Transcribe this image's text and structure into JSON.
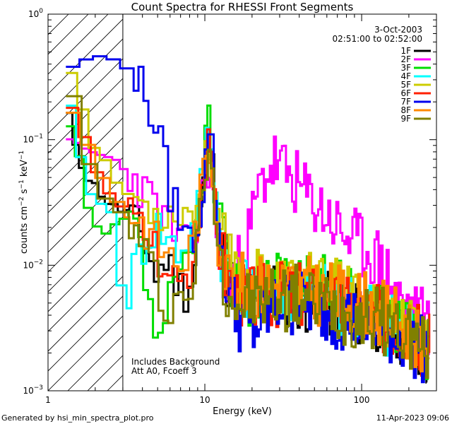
{
  "chart_data": {
    "type": "line",
    "title": "Count Spectra for RHESSI Front Segments",
    "xlabel": "Energy (keV)",
    "ylabel": "counts cm",
    "ylabel_parts": {
      "p1": "counts cm",
      "s1": "−2",
      "p2": " s",
      "s2": "−1",
      "p3": " keV",
      "s3": "−1"
    },
    "xscale": "log",
    "yscale": "log",
    "xlim": [
      1,
      300
    ],
    "ylim": [
      0.001,
      1
    ],
    "x_ticks": [
      {
        "v": 1,
        "label": "1"
      },
      {
        "v": 10,
        "label": "10"
      },
      {
        "v": 100,
        "label": "100"
      }
    ],
    "y_ticks": [
      {
        "v": 1,
        "m": "10",
        "e": "0"
      },
      {
        "v": 0.1,
        "m": "10",
        "e": "−1"
      },
      {
        "v": 0.01,
        "m": "10",
        "e": "−2"
      },
      {
        "v": 0.001,
        "m": "10",
        "e": "−3"
      }
    ],
    "hatched_region_max_energy": 3,
    "annotation_date": "3-Oct-2003",
    "annotation_time": "02:51:00 to 02:52:00",
    "note_line1": "Includes Background",
    "note_line2": "Att A0, Fcoeff 3",
    "footer_left": "Generated by hsi_min_spectra_plot.pro",
    "footer_right": "11-Apr-2023 09:06",
    "legend_position": "top-right",
    "series": [
      {
        "name": "1F",
        "color": "#000000",
        "noise_seed": 11,
        "points": [
          [
            1.3,
            0.2
          ],
          [
            1.4,
            0.13
          ],
          [
            1.6,
            0.07
          ],
          [
            1.8,
            0.05
          ],
          [
            2.1,
            0.04
          ],
          [
            2.5,
            0.03
          ],
          [
            3,
            0.027
          ],
          [
            3.5,
            0.022
          ],
          [
            4,
            0.018
          ],
          [
            4.5,
            0.012
          ],
          [
            5,
            0.007
          ],
          [
            5.5,
            0.012
          ],
          [
            6.5,
            0.008
          ],
          [
            7.5,
            0.006
          ],
          [
            8.5,
            0.009
          ],
          [
            9.5,
            0.03
          ],
          [
            10.5,
            0.09
          ],
          [
            11.5,
            0.05
          ],
          [
            12.5,
            0.018
          ],
          [
            14,
            0.008
          ],
          [
            16,
            0.006
          ],
          [
            20,
            0.005
          ],
          [
            25,
            0.006
          ],
          [
            30,
            0.006
          ],
          [
            40,
            0.0055
          ],
          [
            55,
            0.005
          ],
          [
            70,
            0.0045
          ],
          [
            100,
            0.004
          ],
          [
            150,
            0.0035
          ],
          [
            200,
            0.0028
          ],
          [
            260,
            0.002
          ]
        ]
      },
      {
        "name": "2F",
        "color": "#ff00ff",
        "noise_seed": 23,
        "points": [
          [
            1.3,
            0.095
          ],
          [
            1.5,
            0.09
          ],
          [
            1.8,
            0.08
          ],
          [
            2.2,
            0.075
          ],
          [
            2.6,
            0.07
          ],
          [
            3,
            0.06
          ],
          [
            3.5,
            0.05
          ],
          [
            4,
            0.04
          ],
          [
            5,
            0.03
          ],
          [
            6,
            0.02
          ],
          [
            7,
            0.015
          ],
          [
            8,
            0.014
          ],
          [
            9,
            0.018
          ],
          [
            9.7,
            0.04
          ],
          [
            10.5,
            0.06
          ],
          [
            11.5,
            0.03
          ],
          [
            12.5,
            0.012
          ],
          [
            14,
            0.008
          ],
          [
            16,
            0.009
          ],
          [
            18,
            0.012
          ],
          [
            20,
            0.022
          ],
          [
            22,
            0.038
          ],
          [
            25,
            0.055
          ],
          [
            28,
            0.065
          ],
          [
            32,
            0.055
          ],
          [
            38,
            0.045
          ],
          [
            45,
            0.035
          ],
          [
            52,
            0.03
          ],
          [
            60,
            0.025
          ],
          [
            70,
            0.02
          ],
          [
            85,
            0.016
          ],
          [
            100,
            0.014
          ],
          [
            120,
            0.012
          ],
          [
            150,
            0.008
          ],
          [
            180,
            0.005
          ],
          [
            220,
            0.004
          ],
          [
            270,
            0.0035
          ]
        ]
      },
      {
        "name": "3F",
        "color": "#00dd00",
        "noise_seed": 37,
        "points": [
          [
            1.3,
            0.15
          ],
          [
            1.5,
            0.1
          ],
          [
            1.7,
            0.04
          ],
          [
            1.9,
            0.02
          ],
          [
            2.3,
            0.018
          ],
          [
            2.8,
            0.02
          ],
          [
            3.3,
            0.025
          ],
          [
            4,
            0.012
          ],
          [
            4.5,
            0.004
          ],
          [
            5,
            0.0025
          ],
          [
            6,
            0.005
          ],
          [
            7.5,
            0.009
          ],
          [
            8.5,
            0.012
          ],
          [
            9.5,
            0.04
          ],
          [
            10.5,
            0.19
          ],
          [
            11.2,
            0.05
          ],
          [
            12.5,
            0.02
          ],
          [
            14,
            0.009
          ],
          [
            16,
            0.007
          ],
          [
            20,
            0.006
          ],
          [
            25,
            0.007
          ],
          [
            30,
            0.0065
          ],
          [
            40,
            0.007
          ],
          [
            55,
            0.007
          ],
          [
            70,
            0.006
          ],
          [
            100,
            0.005
          ],
          [
            150,
            0.004
          ],
          [
            200,
            0.003
          ],
          [
            270,
            0.002
          ]
        ]
      },
      {
        "name": "4F",
        "color": "#00ffff",
        "noise_seed": 41,
        "points": [
          [
            1.3,
            0.25
          ],
          [
            1.5,
            0.12
          ],
          [
            1.7,
            0.06
          ],
          [
            1.9,
            0.035
          ],
          [
            2.2,
            0.03
          ],
          [
            2.6,
            0.025
          ],
          [
            2.9,
            0.008
          ],
          [
            3.2,
            0.005
          ],
          [
            3.6,
            0.01
          ],
          [
            4.2,
            0.015
          ],
          [
            5,
            0.02
          ],
          [
            6,
            0.015
          ],
          [
            7,
            0.012
          ],
          [
            8.5,
            0.02
          ],
          [
            9.7,
            0.05
          ],
          [
            10.5,
            0.12
          ],
          [
            11.5,
            0.05
          ],
          [
            12.5,
            0.015
          ],
          [
            14,
            0.008
          ],
          [
            16,
            0.007
          ],
          [
            20,
            0.0065
          ],
          [
            25,
            0.0065
          ],
          [
            30,
            0.006
          ],
          [
            40,
            0.006
          ],
          [
            55,
            0.0055
          ],
          [
            70,
            0.005
          ],
          [
            100,
            0.0045
          ],
          [
            150,
            0.0035
          ],
          [
            200,
            0.003
          ],
          [
            270,
            0.0025
          ]
        ]
      },
      {
        "name": "5F",
        "color": "#cccc00",
        "noise_seed": 53,
        "points": [
          [
            1.3,
            0.5
          ],
          [
            1.5,
            0.3
          ],
          [
            1.7,
            0.15
          ],
          [
            1.9,
            0.1
          ],
          [
            2.2,
            0.07
          ],
          [
            2.6,
            0.05
          ],
          [
            3,
            0.04
          ],
          [
            3.5,
            0.035
          ],
          [
            4.2,
            0.03
          ],
          [
            5,
            0.028
          ],
          [
            6,
            0.025
          ],
          [
            7,
            0.03
          ],
          [
            8,
            0.025
          ],
          [
            9,
            0.03
          ],
          [
            10,
            0.06
          ],
          [
            10.8,
            0.1
          ],
          [
            11.5,
            0.05
          ],
          [
            12.5,
            0.02
          ],
          [
            14,
            0.01
          ],
          [
            16,
            0.008
          ],
          [
            20,
            0.007
          ],
          [
            25,
            0.0075
          ],
          [
            30,
            0.007
          ],
          [
            40,
            0.007
          ],
          [
            55,
            0.0065
          ],
          [
            70,
            0.006
          ],
          [
            100,
            0.005
          ],
          [
            150,
            0.004
          ],
          [
            200,
            0.003
          ],
          [
            270,
            0.0025
          ]
        ]
      },
      {
        "name": "6F",
        "color": "#ff2000",
        "noise_seed": 67,
        "points": [
          [
            1.3,
            0.22
          ],
          [
            1.5,
            0.15
          ],
          [
            1.7,
            0.1
          ],
          [
            1.9,
            0.07
          ],
          [
            2.2,
            0.05
          ],
          [
            2.6,
            0.035
          ],
          [
            3,
            0.03
          ],
          [
            3.5,
            0.025
          ],
          [
            4.2,
            0.018
          ],
          [
            5,
            0.015
          ],
          [
            5.5,
            0.007
          ],
          [
            6.5,
            0.01
          ],
          [
            7.5,
            0.008
          ],
          [
            8.5,
            0.012
          ],
          [
            9.5,
            0.04
          ],
          [
            10.5,
            0.09
          ],
          [
            11.5,
            0.04
          ],
          [
            12.5,
            0.015
          ],
          [
            14,
            0.008
          ],
          [
            16,
            0.006
          ],
          [
            20,
            0.0055
          ],
          [
            25,
            0.006
          ],
          [
            30,
            0.006
          ],
          [
            40,
            0.006
          ],
          [
            55,
            0.0055
          ],
          [
            70,
            0.005
          ],
          [
            100,
            0.0045
          ],
          [
            150,
            0.0035
          ],
          [
            200,
            0.003
          ],
          [
            270,
            0.0022
          ]
        ]
      },
      {
        "name": "7F",
        "color": "#0000ee",
        "noise_seed": 79,
        "points": [
          [
            1.3,
            0.33
          ],
          [
            1.5,
            0.38
          ],
          [
            1.7,
            0.45
          ],
          [
            2,
            0.42
          ],
          [
            2.3,
            0.47
          ],
          [
            2.7,
            0.42
          ],
          [
            3.2,
            0.4
          ],
          [
            3.6,
            0.33
          ],
          [
            4,
            0.25
          ],
          [
            4.5,
            0.18
          ],
          [
            5,
            0.12
          ],
          [
            5.5,
            0.07
          ],
          [
            6,
            0.04
          ],
          [
            6.5,
            0.03
          ],
          [
            7,
            0.025
          ],
          [
            8,
            0.015
          ],
          [
            9,
            0.02
          ],
          [
            10,
            0.05
          ],
          [
            10.7,
            0.15
          ],
          [
            11.5,
            0.05
          ],
          [
            12.5,
            0.015
          ],
          [
            14,
            0.006
          ],
          [
            16,
            0.004
          ],
          [
            20,
            0.003
          ],
          [
            25,
            0.004
          ],
          [
            30,
            0.005
          ],
          [
            40,
            0.005
          ],
          [
            55,
            0.0045
          ],
          [
            70,
            0.004
          ],
          [
            100,
            0.0035
          ],
          [
            150,
            0.003
          ],
          [
            200,
            0.0025
          ],
          [
            270,
            0.002
          ]
        ]
      },
      {
        "name": "8F",
        "color": "#ff8800",
        "noise_seed": 83,
        "points": [
          [
            1.3,
            0.24
          ],
          [
            1.5,
            0.16
          ],
          [
            1.7,
            0.1
          ],
          [
            1.9,
            0.08
          ],
          [
            2.2,
            0.05
          ],
          [
            2.6,
            0.035
          ],
          [
            3,
            0.03
          ],
          [
            3.5,
            0.025
          ],
          [
            4.2,
            0.02
          ],
          [
            5,
            0.015
          ],
          [
            6,
            0.012
          ],
          [
            7,
            0.01
          ],
          [
            8,
            0.012
          ],
          [
            9,
            0.025
          ],
          [
            10,
            0.06
          ],
          [
            10.7,
            0.09
          ],
          [
            11.5,
            0.04
          ],
          [
            12.5,
            0.015
          ],
          [
            14,
            0.008
          ],
          [
            16,
            0.007
          ],
          [
            20,
            0.0065
          ],
          [
            25,
            0.007
          ],
          [
            30,
            0.007
          ],
          [
            40,
            0.0065
          ],
          [
            55,
            0.006
          ],
          [
            70,
            0.0055
          ],
          [
            100,
            0.005
          ],
          [
            150,
            0.004
          ],
          [
            200,
            0.003
          ],
          [
            270,
            0.0025
          ]
        ]
      },
      {
        "name": "9F",
        "color": "#808000",
        "noise_seed": 97,
        "points": [
          [
            1.3,
            0.26
          ],
          [
            1.5,
            0.2
          ],
          [
            1.7,
            0.1
          ],
          [
            1.9,
            0.05
          ],
          [
            2.2,
            0.035
          ],
          [
            2.6,
            0.03
          ],
          [
            3,
            0.025
          ],
          [
            3.5,
            0.02
          ],
          [
            4.2,
            0.012
          ],
          [
            5,
            0.008
          ],
          [
            5.5,
            0.004
          ],
          [
            6.5,
            0.006
          ],
          [
            7.5,
            0.005
          ],
          [
            8.5,
            0.008
          ],
          [
            9.5,
            0.03
          ],
          [
            10.5,
            0.08
          ],
          [
            11.5,
            0.035
          ],
          [
            12.5,
            0.012
          ],
          [
            14,
            0.007
          ],
          [
            16,
            0.005
          ],
          [
            20,
            0.005
          ],
          [
            25,
            0.0055
          ],
          [
            30,
            0.0055
          ],
          [
            40,
            0.0055
          ],
          [
            55,
            0.005
          ],
          [
            70,
            0.0045
          ],
          [
            100,
            0.004
          ],
          [
            150,
            0.0035
          ],
          [
            200,
            0.0028
          ],
          [
            270,
            0.002
          ]
        ]
      }
    ]
  }
}
